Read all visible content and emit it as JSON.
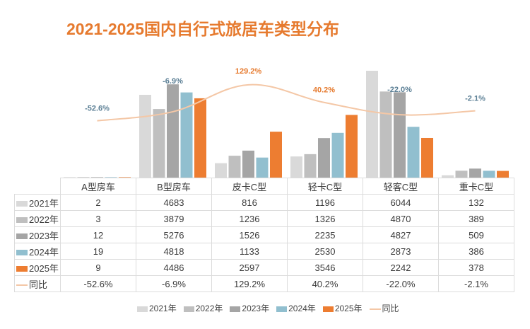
{
  "title": "2021-2025国内自行式旅居车类型分布",
  "chart_data": {
    "type": "bar",
    "title": "2021-2025国内自行式旅居车类型分布",
    "xlabel": "",
    "ylabel": "",
    "categories": [
      "A型房车",
      "B型房车",
      "皮卡C型",
      "轻卡C型",
      "轻客C型",
      "重卡C型"
    ],
    "series": [
      {
        "name": "2021年",
        "color": "#d9d9d9",
        "values": [
          2,
          4683,
          816,
          1196,
          6044,
          132
        ]
      },
      {
        "name": "2022年",
        "color": "#bfbfbf",
        "values": [
          3,
          3879,
          1236,
          1326,
          4870,
          389
        ]
      },
      {
        "name": "2023年",
        "color": "#a5a5a5",
        "values": [
          12,
          5276,
          1526,
          2235,
          4827,
          509
        ]
      },
      {
        "name": "2024年",
        "color": "#91bfcf",
        "values": [
          19,
          4818,
          1133,
          2530,
          2873,
          386
        ]
      },
      {
        "name": "2025年",
        "color": "#ed7d31",
        "values": [
          9,
          4486,
          2597,
          3546,
          2242,
          378
        ]
      }
    ],
    "line_series": {
      "name": "同比",
      "color": "#f4c7a6",
      "values": [
        -52.6,
        -6.9,
        129.2,
        40.2,
        -22.0,
        -2.1
      ],
      "labels": [
        "-52.6%",
        "-6.9%",
        "129.2%",
        "40.2%",
        "-22.0%",
        "-2.1%"
      ],
      "label_colors": [
        "#5b7f95",
        "#5b7f95",
        "#e67a2e",
        "#e67a2e",
        "#5b7f95",
        "#5b7f95"
      ]
    },
    "ylim": [
      0,
      6044
    ],
    "y2lim": [
      -300,
      200
    ],
    "grid": false,
    "legend": "bottom",
    "data_table": true
  },
  "table": {
    "headers": [
      "A型房车",
      "B型房车",
      "皮卡C型",
      "轻卡C型",
      "轻客C型",
      "重卡C型"
    ],
    "rows": [
      {
        "label": "2021年",
        "color": "#d9d9d9",
        "cells": [
          "2",
          "4683",
          "816",
          "1196",
          "6044",
          "132"
        ]
      },
      {
        "label": "2022年",
        "color": "#bfbfbf",
        "cells": [
          "3",
          "3879",
          "1236",
          "1326",
          "4870",
          "389"
        ]
      },
      {
        "label": "2023年",
        "color": "#a5a5a5",
        "cells": [
          "12",
          "5276",
          "1526",
          "2235",
          "4827",
          "509"
        ]
      },
      {
        "label": "2024年",
        "color": "#91bfcf",
        "cells": [
          "19",
          "4818",
          "1133",
          "2530",
          "2873",
          "386"
        ]
      },
      {
        "label": "2025年",
        "color": "#ed7d31",
        "cells": [
          "9",
          "4486",
          "2597",
          "3546",
          "2242",
          "378"
        ]
      }
    ],
    "line_row": {
      "label": "同比",
      "color": "#f4c7a6",
      "cells": [
        "-52.6%",
        "-6.9%",
        "129.2%",
        "40.2%",
        "-22.0%",
        "-2.1%"
      ]
    }
  },
  "legend": [
    {
      "label": "2021年",
      "color": "#d9d9d9",
      "kind": "bar"
    },
    {
      "label": "2022年",
      "color": "#bfbfbf",
      "kind": "bar"
    },
    {
      "label": "2023年",
      "color": "#a5a5a5",
      "kind": "bar"
    },
    {
      "label": "2024年",
      "color": "#91bfcf",
      "kind": "bar"
    },
    {
      "label": "2025年",
      "color": "#ed7d31",
      "kind": "bar"
    },
    {
      "label": "同比",
      "color": "#f4c7a6",
      "kind": "line"
    }
  ]
}
